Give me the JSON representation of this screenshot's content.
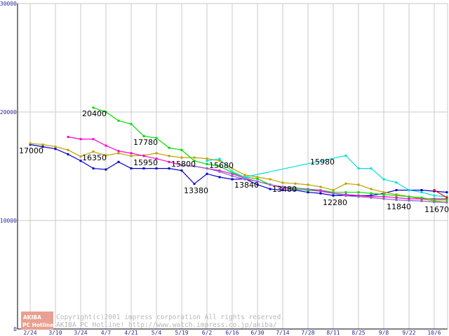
{
  "chart_data": {
    "type": "line",
    "title": "",
    "xlabel": "",
    "ylabel": "",
    "ylim": [
      0,
      30000
    ],
    "yticks": [
      0,
      10000,
      20000,
      30000
    ],
    "ytick_labels": [
      "0",
      "10000",
      "20000",
      "30000"
    ],
    "x_tick_labels": [
      "2/24",
      "3/10",
      "3/24",
      "4/7",
      "4/21",
      "5/4",
      "5/19",
      "6/2",
      "6/16",
      "6/30",
      "7/14",
      "7/28",
      "8/11",
      "8/25",
      "9/8",
      "9/22",
      "10/6"
    ],
    "x_range": [
      0,
      33
    ],
    "grid": true,
    "series": [
      {
        "name": "blue",
        "color": "#0000cc",
        "x": [
          0,
          1,
          2,
          3,
          4,
          5,
          6,
          7,
          8,
          9,
          10,
          11,
          12,
          13,
          14,
          15,
          16,
          17,
          18,
          19,
          20,
          21,
          22,
          23,
          24,
          25,
          26,
          27,
          28,
          29,
          30,
          31,
          32,
          33
        ],
        "y": [
          17000,
          16800,
          16600,
          16100,
          15500,
          14800,
          14700,
          15400,
          14800,
          14800,
          14800,
          14800,
          14600,
          13380,
          14300,
          14000,
          13800,
          13840,
          13300,
          12900,
          12800,
          12800,
          12600,
          12500,
          12300,
          12300,
          12300,
          12300,
          12500,
          12800,
          12800,
          12800,
          12700,
          12600
        ]
      },
      {
        "name": "gold",
        "color": "#c0a000",
        "x": [
          0,
          1,
          2,
          3,
          4,
          5,
          6,
          7,
          8,
          9,
          10,
          11,
          12,
          13,
          14,
          15,
          16,
          17,
          18,
          19,
          20,
          21,
          22,
          23,
          24,
          25,
          26,
          27,
          28,
          29,
          30,
          31,
          32,
          33
        ],
        "y": [
          17100,
          17000,
          16800,
          16500,
          15900,
          16350,
          16000,
          16200,
          15950,
          16000,
          16200,
          15950,
          15800,
          15800,
          15700,
          15500,
          14800,
          14200,
          14000,
          13800,
          13480,
          13400,
          13300,
          13100,
          12800,
          13400,
          13300,
          12900,
          12600,
          12400,
          12200,
          12000,
          11800,
          11700
        ]
      },
      {
        "name": "magenta",
        "color": "#ff00cc",
        "x": [
          3,
          4,
          5,
          6,
          7,
          8,
          9,
          10,
          11,
          12,
          13,
          14,
          15,
          16,
          17,
          18,
          19,
          20,
          21,
          22,
          23,
          24,
          25,
          26,
          27,
          28,
          29,
          30,
          31,
          32,
          33
        ],
        "y": [
          17700,
          17500,
          17500,
          16900,
          16400,
          16200,
          15950,
          15700,
          15400,
          15100,
          15000,
          14800,
          14600,
          14300,
          13900,
          13600,
          13300,
          13000,
          12900,
          12800,
          12700,
          12500,
          12400,
          12300,
          12200,
          12200,
          12100,
          12000,
          12000,
          12000,
          12000
        ]
      },
      {
        "name": "green",
        "color": "#00dd00",
        "x": [
          5,
          6,
          7,
          8,
          9,
          10,
          11,
          12,
          13,
          14,
          15,
          16,
          17,
          18,
          19,
          20,
          21,
          22,
          23,
          24,
          25,
          26,
          27,
          28,
          29,
          30,
          31,
          32,
          33
        ],
        "y": [
          20400,
          20000,
          19200,
          18900,
          17780,
          17600,
          16700,
          16500,
          15500,
          15200,
          15000,
          14400,
          14000,
          13840,
          13300,
          13100,
          12900,
          12800,
          12800,
          12600,
          12600,
          12600,
          12500,
          12400,
          12300,
          12200,
          12100,
          11900,
          11900
        ]
      },
      {
        "name": "cyan",
        "color": "#00dddd",
        "x": [
          14,
          15,
          16,
          17,
          25,
          26,
          27,
          28,
          29,
          30,
          31,
          32,
          33
        ],
        "y": [
          15500,
          15680,
          14500,
          14000,
          15980,
          14800,
          14800,
          13800,
          13500,
          12800,
          12600,
          12300,
          12200
        ]
      },
      {
        "name": "violet",
        "color": "#8866cc",
        "x": [
          12,
          13,
          14,
          15,
          16,
          17,
          18,
          19,
          20,
          21,
          22,
          23,
          24,
          25,
          26,
          27,
          28,
          29,
          30,
          31,
          32,
          33
        ],
        "y": [
          15100,
          15000,
          14800,
          14500,
          14100,
          13800,
          13600,
          13300,
          13100,
          13000,
          12900,
          12800,
          12500,
          12280,
          12200,
          12100,
          12000,
          11900,
          11840,
          11800,
          11700,
          11670
        ]
      },
      {
        "name": "red",
        "color": "#ee0000",
        "x": [
          32,
          33
        ],
        "y": [
          12800,
          12100
        ]
      }
    ],
    "annotations": [
      "17000",
      "20400",
      "16350",
      "17780",
      "15950",
      "15800",
      "13380",
      "15680",
      "13840",
      "13480",
      "15980",
      "12280",
      "11840",
      "11670"
    ]
  },
  "watermark": {
    "logo_top": "AKIBA",
    "logo_bottom": "PC Hotline!",
    "copyright_line": "Copyright(c)2001 impress corporation All rights reserved.",
    "site_line": "AKIBA PC Hotline!  http://www.watch.impress.co.jp/akiba/"
  },
  "colors": {
    "grid": "#c8c8c8",
    "axis": "#000000",
    "tick_text": "#2a2a9a",
    "logo_bg": "#e8a090"
  }
}
